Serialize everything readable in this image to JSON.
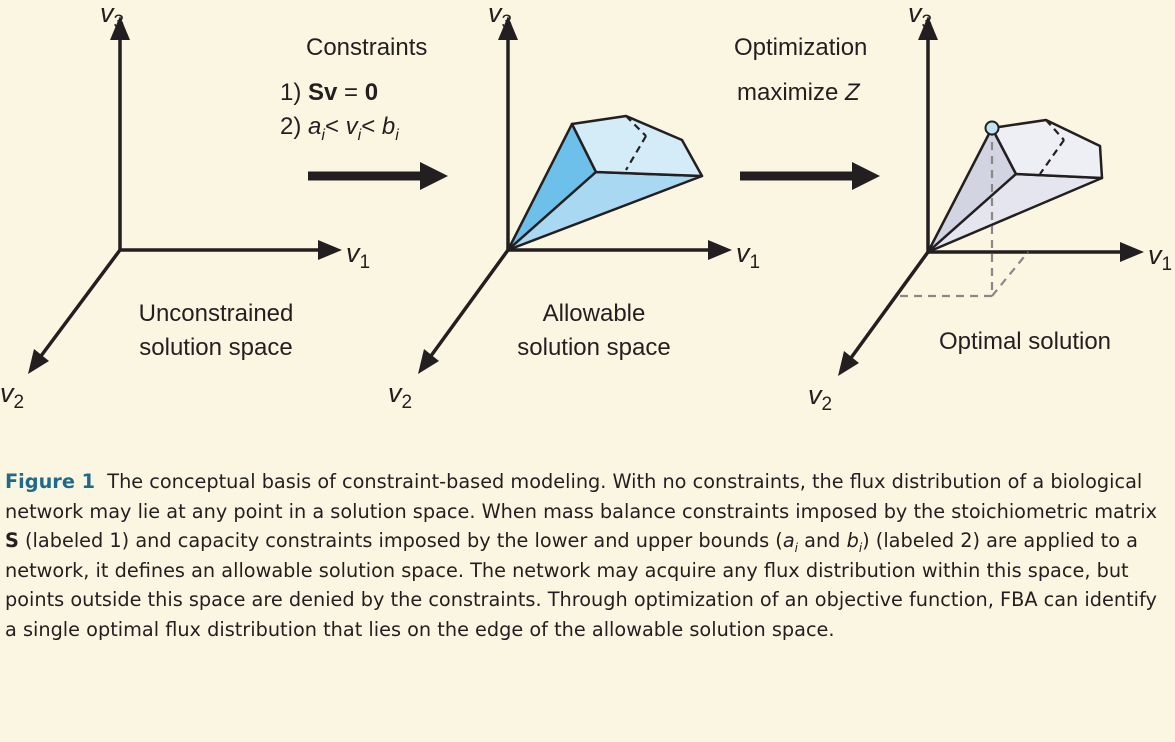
{
  "axes": {
    "v1": "v",
    "v2": "v",
    "v3": "v",
    "sub1": "1",
    "sub2": "2",
    "sub3": "3"
  },
  "panel1": {
    "label_line1": "Unconstrained",
    "label_line2": "solution space"
  },
  "panel2": {
    "label_line1": "Allowable",
    "label_line2": "solution space"
  },
  "panel3": {
    "label": "Optimal solution"
  },
  "step1": {
    "title": "Constraints",
    "c1_num": "1)",
    "c1_S": "Sv",
    "c1_eq": "=",
    "c1_zero": "0",
    "c2_num": "2)",
    "c2_a": "a",
    "c2_lt1": "<",
    "c2_v": "v",
    "c2_lt2": "<",
    "c2_b": "b",
    "c2_i": "i"
  },
  "step2": {
    "title": "Optimization",
    "obj_word": "maximize",
    "obj_var": "Z"
  },
  "caption": {
    "fig_label": "Figure 1",
    "p1": "The conceptual basis of constraint-based modeling. With no constraints, the flux distribution of a biological network may lie at any point in a solution space. When mass balance constraints imposed by the stoichiometric matrix",
    "S": "S",
    "p2": "(labeled 1) and capacity constraints imposed by the lower and upper bounds (",
    "a": "a",
    "i": "i",
    "and": "and",
    "b": "b",
    "p3": ") (labeled 2) are applied to a network, it defines an allowable solution space. The network may acquire any flux distribution within this space, but points outside this space are denied by the constraints. Through optimization of an objective function, FBA can identify a single optimal flux distribution that lies on the edge of the allowable solution space."
  },
  "colors": {
    "allowable_fill": "#a9d9f2",
    "optimal_fill": "#e4e5ee",
    "point": "#bfe4f4",
    "accent": "#1f6a8c"
  }
}
